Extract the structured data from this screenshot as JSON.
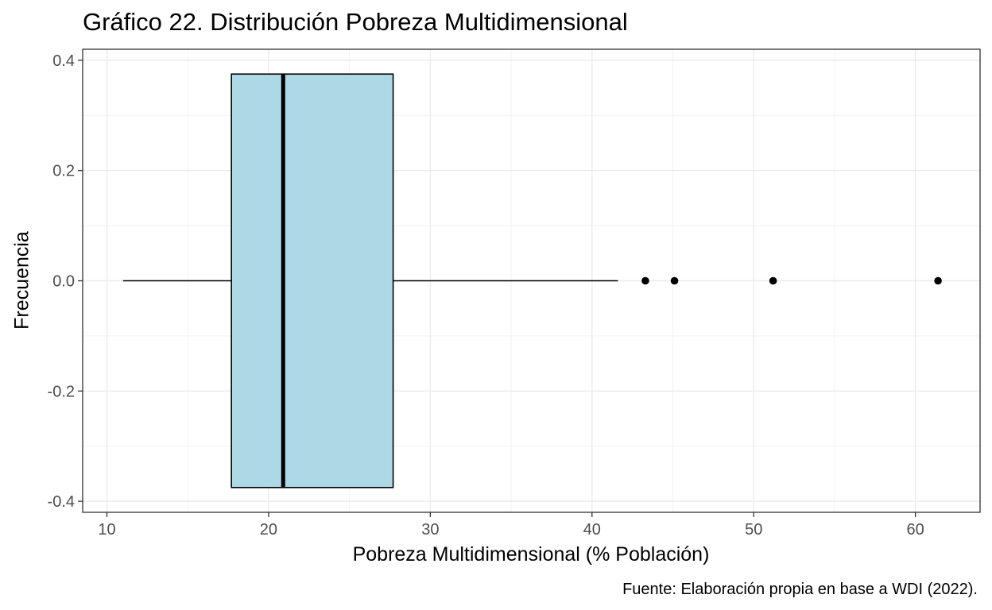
{
  "chart_data": {
    "type": "boxplot",
    "title": "Gráfico 22. Distribución Pobreza Multidimensional",
    "xlabel": "Pobreza Multidimensional (% Población)",
    "ylabel": "Frecuencia",
    "caption": "Fuente: Elaboración propia en base a WDI (2022).",
    "xlim": [
      8.5,
      64
    ],
    "ylim": [
      -0.42,
      0.42
    ],
    "x_ticks": [
      10,
      20,
      30,
      40,
      50,
      60
    ],
    "x_tick_labels": [
      "10",
      "20",
      "30",
      "40",
      "50",
      "60"
    ],
    "y_ticks": [
      -0.4,
      -0.2,
      0.0,
      0.2,
      0.4
    ],
    "y_tick_labels": [
      "-0.4",
      "-0.2",
      "0.0",
      "0.2",
      "0.4"
    ],
    "box": {
      "whisker_low": 11.0,
      "q1": 17.7,
      "median": 20.9,
      "q3": 27.7,
      "whisker_high": 41.6,
      "box_half_height": 0.375,
      "outliers": [
        43.3,
        45.1,
        51.2,
        61.4
      ]
    },
    "box_fill": "#add8e6",
    "grid": true,
    "panel_border": true
  }
}
